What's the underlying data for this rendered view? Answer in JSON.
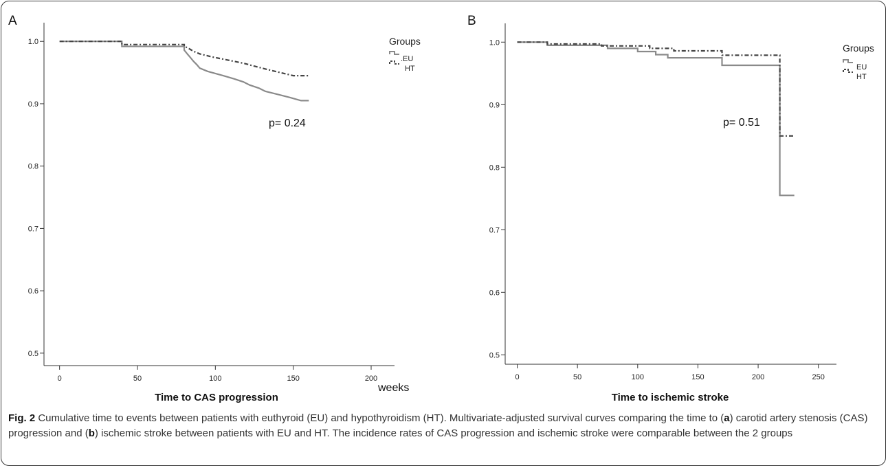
{
  "chart_data": [
    {
      "panel": "A",
      "type": "line",
      "step": true,
      "xlabel": "Time to CAS progression",
      "x_unit": "weeks",
      "xlim": [
        -10,
        215
      ],
      "ylim": [
        0.48,
        1.03
      ],
      "xticks": [
        0,
        50,
        100,
        150,
        200
      ],
      "yticks": [
        0.5,
        0.6,
        0.7,
        0.8,
        0.9,
        1.0
      ],
      "ytick_labels": [
        "0.5",
        "0.6",
        "0.7",
        "0.8",
        "0.9",
        "1.0"
      ],
      "legend_title": "Groups",
      "legend_position": "top-right",
      "annotation": "p= 0.24",
      "series": [
        {
          "name": "EU",
          "legend_label": ".EU",
          "style": "solid",
          "color": "#8a8a8a",
          "x": [
            0,
            40,
            40,
            80,
            80,
            82,
            84,
            86,
            88,
            90,
            95,
            105,
            112,
            118,
            122,
            128,
            132,
            140,
            148,
            155,
            160
          ],
          "y": [
            1.0,
            1.0,
            0.992,
            0.992,
            0.986,
            0.98,
            0.974,
            0.968,
            0.963,
            0.957,
            0.952,
            0.945,
            0.94,
            0.935,
            0.93,
            0.925,
            0.92,
            0.915,
            0.91,
            0.905,
            0.905
          ]
        },
        {
          "name": "HT",
          "legend_label": "HT",
          "style": "dashdot",
          "color": "#444444",
          "x": [
            0,
            40,
            40,
            80,
            80,
            82,
            84,
            86,
            90,
            98,
            108,
            118,
            130,
            140,
            150,
            160
          ],
          "y": [
            1.0,
            1.0,
            0.995,
            0.995,
            0.992,
            0.99,
            0.987,
            0.984,
            0.98,
            0.975,
            0.97,
            0.965,
            0.957,
            0.951,
            0.945,
            0.945
          ]
        }
      ]
    },
    {
      "panel": "B",
      "type": "line",
      "step": true,
      "xlabel": "Time to ischemic stroke",
      "xlim": [
        -10,
        265
      ],
      "ylim": [
        0.485,
        1.03
      ],
      "xticks": [
        0,
        50,
        100,
        150,
        200,
        250
      ],
      "yticks": [
        0.5,
        0.6,
        0.7,
        0.8,
        0.9,
        1.0
      ],
      "ytick_labels": [
        "0.5",
        "0.6",
        "0.7",
        "0.8",
        "0.9",
        "1.0"
      ],
      "legend_title": "Groups",
      "legend_position": "top-right",
      "annotation": "p= 0.51",
      "series": [
        {
          "name": "EU",
          "legend_label": "EU",
          "style": "solid",
          "color": "#8a8a8a",
          "x": [
            0,
            25,
            25,
            75,
            75,
            100,
            100,
            115,
            115,
            125,
            125,
            170,
            170,
            218,
            218,
            230
          ],
          "y": [
            1.0,
            1.0,
            0.995,
            0.995,
            0.99,
            0.99,
            0.985,
            0.985,
            0.98,
            0.98,
            0.975,
            0.975,
            0.963,
            0.963,
            0.755,
            0.755
          ]
        },
        {
          "name": "HT",
          "legend_label": "HT",
          "style": "dashdot",
          "color": "#444444",
          "x": [
            0,
            25,
            25,
            70,
            70,
            110,
            110,
            130,
            130,
            170,
            170,
            218,
            218,
            230
          ],
          "y": [
            1.0,
            1.0,
            0.997,
            0.997,
            0.994,
            0.994,
            0.99,
            0.99,
            0.986,
            0.986,
            0.979,
            0.979,
            0.85,
            0.85
          ]
        }
      ]
    }
  ],
  "caption": {
    "fig": "Fig. 2",
    "pre_a": " Cumulative time to events between patients with euthyroid (EU) and hypothyroidism (HT). Multivariate-adjusted survival curves comparing the time to (",
    "a": "a",
    "mid": ") carotid artery stenosis (CAS) progression and (",
    "b": "b",
    "post": ") ischemic stroke between patients with EU and HT. The incidence rates of CAS progression and ischemic stroke were comparable between the 2 groups"
  },
  "colors": {
    "eu_line": "#8a8a8a",
    "ht_line": "#444444",
    "axis": "#333333",
    "frame": "#3a3a3a"
  }
}
